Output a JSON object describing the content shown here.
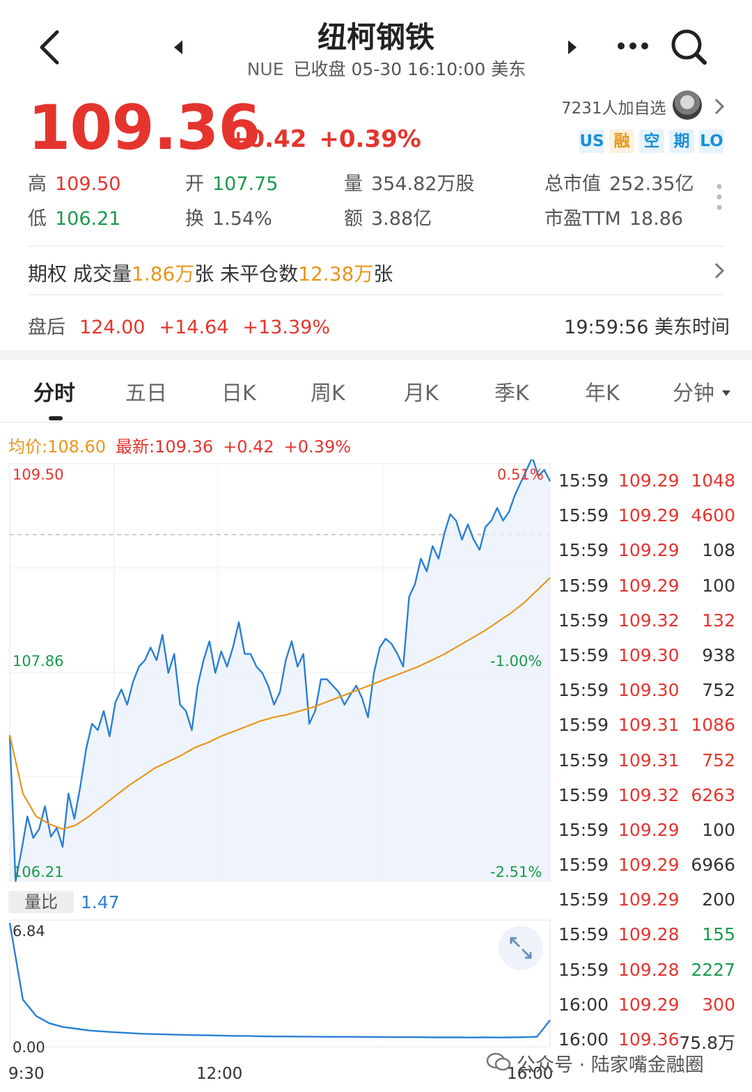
{
  "header": {
    "title": "纽柯钢铁",
    "code": "NUE",
    "status": "已收盘 05-30 16:10:00 美东"
  },
  "quote": {
    "price": "109.36",
    "change": "+0.42",
    "change_pct": "+0.39%",
    "watchers": "7231人加自选",
    "tags": [
      {
        "label": "US",
        "color": "#1a8fd6",
        "bg": "#e6f3fc"
      },
      {
        "label": "融",
        "color": "#e8951b",
        "bg": "#fdf1df"
      },
      {
        "label": "空",
        "color": "#1a8fd6",
        "bg": "#e6f3fc"
      },
      {
        "label": "期",
        "color": "#1a8fd6",
        "bg": "#e6f3fc"
      },
      {
        "label": "LO",
        "color": "#1a8fd6",
        "bg": "#e6f3fc"
      }
    ]
  },
  "stats": {
    "high": {
      "label": "高",
      "value": "109.50"
    },
    "open": {
      "label": "开",
      "value": "107.75"
    },
    "volume": {
      "label": "量",
      "value": "354.82万股"
    },
    "market_cap": {
      "label": "总市值",
      "value": "252.35亿"
    },
    "low": {
      "label": "低",
      "value": "106.21"
    },
    "turnover": {
      "label": "换",
      "value": "1.54%"
    },
    "amount": {
      "label": "额",
      "value": "3.88亿"
    },
    "pe": {
      "label": "市盈TTM",
      "value": "18.86"
    }
  },
  "options": {
    "prefix": "期权 成交量",
    "volume": "1.86万",
    "mid": "张 未平仓数",
    "oi": "12.38万",
    "suffix": "张"
  },
  "after_hours": {
    "label": "盘后",
    "price": "124.00",
    "change": "+14.64",
    "change_pct": "+13.39%",
    "time": "19:59:56 美东时间"
  },
  "tabs": [
    "分时",
    "五日",
    "日K",
    "周K",
    "月K",
    "季K",
    "年K",
    "分钟"
  ],
  "chart_info": {
    "avg": "均价:108.60",
    "latest": "最新:109.36",
    "change": "+0.42",
    "pct": "+0.39%"
  },
  "chart_data": {
    "type": "line",
    "y_labels": {
      "top": "109.50",
      "mid": "107.86",
      "bottom": "106.21"
    },
    "pct_labels": {
      "top": "0.51%",
      "mid": "-1.00%",
      "bottom": "-2.51%"
    },
    "x_labels": [
      "9:30",
      "12:00",
      "16:00"
    ],
    "ylim": [
      106.21,
      109.5
    ],
    "prev_close": 108.94,
    "series": [
      {
        "color": "#2a7fd4",
        "values": [
          107.36,
          106.21,
          106.45,
          106.72,
          106.55,
          106.62,
          106.8,
          106.56,
          106.63,
          106.48,
          106.9,
          106.7,
          106.95,
          107.25,
          107.45,
          107.4,
          107.55,
          107.35,
          107.62,
          107.72,
          107.6,
          107.78,
          107.9,
          107.95,
          108.05,
          107.95,
          108.15,
          107.85,
          108,
          107.6,
          107.55,
          107.4,
          107.75,
          107.95,
          108.1,
          107.85,
          108.02,
          107.9,
          108.05,
          108.25,
          108,
          108.0,
          107.9,
          107.85,
          107.75,
          107.6,
          107.7,
          107.95,
          108.1,
          107.9,
          108.0,
          107.45,
          107.55,
          107.8,
          107.8,
          107.75,
          107.7,
          107.6,
          107.68,
          107.75,
          107.65,
          107.5,
          107.85,
          108.05,
          108.12,
          108.08,
          108.0,
          107.9,
          108.45,
          108.55,
          108.75,
          108.65,
          108.85,
          108.75,
          108.95,
          109.1,
          109.05,
          108.9,
          109.02,
          108.9,
          108.82,
          109.0,
          109.05,
          109.15,
          109.05,
          109.12,
          109.25,
          109.35,
          109.45,
          109.55,
          109.4,
          109.45,
          109.36
        ]
      },
      {
        "color": "#e8951b",
        "values": [
          107.36,
          106.9,
          106.72,
          106.66,
          106.62,
          106.65,
          106.72,
          106.8,
          106.88,
          106.96,
          107.03,
          107.1,
          107.15,
          107.2,
          107.26,
          107.3,
          107.35,
          107.39,
          107.43,
          107.47,
          107.5,
          107.52,
          107.55,
          107.58,
          107.62,
          107.66,
          107.7,
          107.74,
          107.78,
          107.82,
          107.86,
          107.9,
          107.95,
          108.0,
          108.06,
          108.12,
          108.18,
          108.25,
          108.32,
          108.4,
          108.5,
          108.6
        ]
      }
    ]
  },
  "volume_chart": {
    "label": "量比",
    "value": "1.47",
    "max_label": "6.84",
    "min_label": "0.00"
  },
  "trades": [
    {
      "time": "15:59",
      "price": "109.29",
      "vol": "1048",
      "vcolor": "#e5342d"
    },
    {
      "time": "15:59",
      "price": "109.29",
      "vol": "4600",
      "vcolor": "#e5342d"
    },
    {
      "time": "15:59",
      "price": "109.29",
      "vol": "108",
      "vcolor": "#333333"
    },
    {
      "time": "15:59",
      "price": "109.29",
      "vol": "100",
      "vcolor": "#333333"
    },
    {
      "time": "15:59",
      "price": "109.32",
      "vol": "132",
      "vcolor": "#e5342d"
    },
    {
      "time": "15:59",
      "price": "109.30",
      "vol": "938",
      "vcolor": "#333333"
    },
    {
      "time": "15:59",
      "price": "109.30",
      "vol": "752",
      "vcolor": "#333333"
    },
    {
      "time": "15:59",
      "price": "109.31",
      "vol": "1086",
      "vcolor": "#e5342d"
    },
    {
      "time": "15:59",
      "price": "109.31",
      "vol": "752",
      "vcolor": "#e5342d"
    },
    {
      "time": "15:59",
      "price": "109.32",
      "vol": "6263",
      "vcolor": "#e5342d"
    },
    {
      "time": "15:59",
      "price": "109.29",
      "vol": "100",
      "vcolor": "#333333"
    },
    {
      "time": "15:59",
      "price": "109.29",
      "vol": "6966",
      "vcolor": "#333333"
    },
    {
      "time": "15:59",
      "price": "109.29",
      "vol": "200",
      "vcolor": "#333333"
    },
    {
      "time": "15:59",
      "price": "109.28",
      "vol": "155",
      "vcolor": "#1a9a4b"
    },
    {
      "time": "15:59",
      "price": "109.28",
      "vol": "2227",
      "vcolor": "#1a9a4b"
    },
    {
      "time": "16:00",
      "price": "109.29",
      "vol": "300",
      "vcolor": "#e5342d"
    },
    {
      "time": "16:00",
      "price": "109.36",
      "vol": "75.8万",
      "vcolor": "#333333"
    }
  ],
  "watermark": "公众号 · 陆家嘴金融圈"
}
